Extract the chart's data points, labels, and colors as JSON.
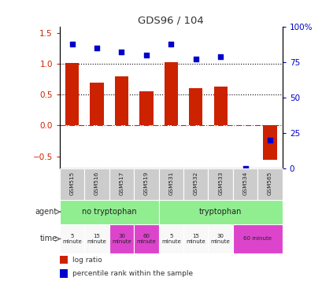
{
  "title": "GDS96 / 104",
  "samples": [
    "GSM515",
    "GSM516",
    "GSM517",
    "GSM519",
    "GSM531",
    "GSM532",
    "GSM533",
    "GSM534",
    "GSM565"
  ],
  "log_ratio": [
    1.01,
    0.7,
    0.79,
    0.56,
    1.03,
    0.61,
    0.63,
    0.0,
    -0.56
  ],
  "percentile": [
    88,
    85,
    82,
    80,
    88,
    77,
    79,
    0.0,
    20
  ],
  "bar_color": "#cc2200",
  "dot_color": "#0000cc",
  "ylim_left": [
    -0.7,
    1.6
  ],
  "ylim_right": [
    0,
    100
  ],
  "yticks_left": [
    -0.5,
    0.0,
    0.5,
    1.0,
    1.5
  ],
  "yticks_right": [
    0,
    25,
    50,
    75,
    100
  ],
  "hlines": [
    0.0,
    0.5,
    1.0
  ],
  "hline_styles": [
    "dashdot",
    "dotted",
    "dotted"
  ],
  "hline_colors": [
    "#cc2200",
    "#000000",
    "#000000"
  ],
  "agent_color_green": "#90ee90",
  "agent_color_violet": "#dd44cc",
  "gsm_bg_color": "#cccccc",
  "background_color": "#ffffff",
  "time_info": [
    [
      0,
      1,
      "5\nminute",
      "#f8f8f8"
    ],
    [
      1,
      1,
      "15\nminute",
      "#f8f8f8"
    ],
    [
      2,
      1,
      "30\nminute",
      "#dd44cc"
    ],
    [
      3,
      1,
      "60\nminute",
      "#dd44cc"
    ],
    [
      4,
      1,
      "5\nminute",
      "#f8f8f8"
    ],
    [
      5,
      1,
      "15\nminute",
      "#f8f8f8"
    ],
    [
      6,
      1,
      "30\nminute",
      "#f8f8f8"
    ],
    [
      7,
      2,
      "60 minute",
      "#dd44cc"
    ]
  ]
}
